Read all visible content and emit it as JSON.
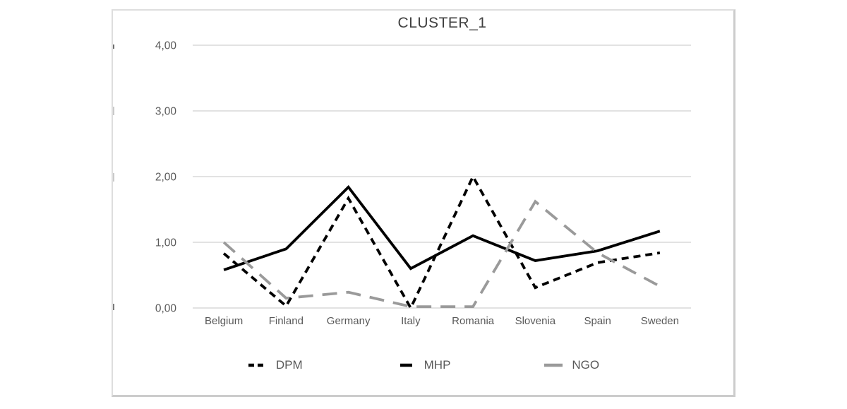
{
  "chart_data": {
    "type": "line",
    "title": "CLUSTER_1",
    "categories": [
      "Belgium",
      "Finland",
      "Germany",
      "Italy",
      "Romania",
      "Slovenia",
      "Spain",
      "Sweden"
    ],
    "series": [
      {
        "name": "DPM",
        "color": "#000000",
        "dash": "10 7",
        "values": [
          0.83,
          0.03,
          1.67,
          0.0,
          2.0,
          0.31,
          0.69,
          0.84
        ]
      },
      {
        "name": "MHP",
        "color": "#000000",
        "dash": "",
        "values": [
          0.58,
          0.9,
          1.84,
          0.6,
          1.1,
          0.72,
          0.87,
          1.17
        ]
      },
      {
        "name": "NGO",
        "color": "#9a9a9a",
        "dash": "21 13",
        "values": [
          1.0,
          0.15,
          0.24,
          0.02,
          0.02,
          1.62,
          0.84,
          0.33
        ]
      }
    ],
    "ylim": [
      0,
      4
    ],
    "ytick_labels": [
      "0,00",
      "1,00",
      "2,00",
      "3,00",
      "4,00"
    ],
    "grid": true,
    "legend_position": "bottom",
    "decimal_separator": ",",
    "colors": {
      "gridline": "#d9d9d9",
      "axis_label": "#595959",
      "title": "#404040",
      "frame_border": "#d6d6d6",
      "background": "#ffffff"
    }
  }
}
